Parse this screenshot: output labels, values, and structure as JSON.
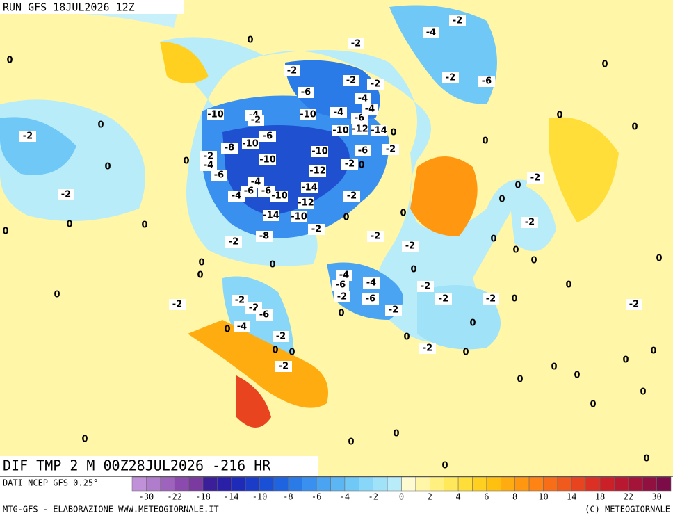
{
  "header": {
    "run": "RUN GFS 18JUL2026 12Z"
  },
  "map": {
    "title": "DIF TMP 2 M 00Z28JUL2026 -216 HR",
    "contour_labels": [
      0,
      0,
      -2,
      0,
      0,
      -2,
      0,
      0,
      0,
      0,
      -10,
      -4,
      -2,
      -6,
      -2,
      -2,
      -2,
      -4,
      -2,
      -2,
      -6,
      0,
      0,
      0,
      0,
      -2,
      0,
      0,
      -2,
      0,
      0,
      0,
      0,
      0,
      0,
      -2,
      -8,
      -10,
      -6,
      -10,
      -10,
      -12,
      -14,
      -10,
      -12,
      -14,
      -10,
      -8,
      -2,
      -2,
      0,
      -2,
      -2,
      0,
      -2,
      0,
      -4,
      -6,
      -4,
      -6,
      -2,
      0,
      -2,
      -2,
      -2,
      -2,
      0,
      0,
      0,
      -2,
      0,
      0,
      -2,
      0,
      -2,
      -2,
      -6,
      -4,
      0,
      -2,
      0,
      0,
      -2,
      0,
      0,
      0,
      0,
      0,
      0,
      0,
      0,
      0,
      0,
      0,
      0,
      0,
      -10,
      -12,
      -14,
      0,
      -2,
      -6,
      0,
      -2,
      -10,
      -4,
      -6,
      -4,
      -4,
      -2,
      -2,
      -4,
      -6,
      -4,
      -4,
      -6,
      -6,
      -10
    ]
  },
  "legend": {
    "source": "DATI NCEP GFS 0.25°",
    "ticks": [
      -30,
      -22,
      -18,
      -14,
      -10,
      -8,
      -6,
      -4,
      -2,
      0,
      2,
      4,
      6,
      8,
      10,
      14,
      18,
      22,
      30
    ],
    "colors": [
      "#c090d8",
      "#b07ccc",
      "#9d63bd",
      "#8a4aae",
      "#7a3aa0",
      "#3a1e9a",
      "#2a20a8",
      "#1e2ab8",
      "#1a3cc8",
      "#1a50d6",
      "#1e64e0",
      "#2a7ae8",
      "#3a90ee",
      "#4aa4f2",
      "#5cb6f4",
      "#70c8f6",
      "#88d6f8",
      "#a0e2f8",
      "#b8ecf8",
      "#fffbd0",
      "#fff6a8",
      "#fff080",
      "#ffe85a",
      "#ffde3a",
      "#ffd020",
      "#ffc010",
      "#ffac10",
      "#ff9810",
      "#ff8414",
      "#f86e18",
      "#f05a1c",
      "#e84420",
      "#dc3024",
      "#cc2028",
      "#b81830",
      "#a41438",
      "#901040",
      "#7c0c48"
    ]
  },
  "footer": {
    "left": "MTG-GFS - ELABORAZIONE WWW.METEOGIORNALE.IT",
    "right": "(C) METEOGIORNALE"
  }
}
